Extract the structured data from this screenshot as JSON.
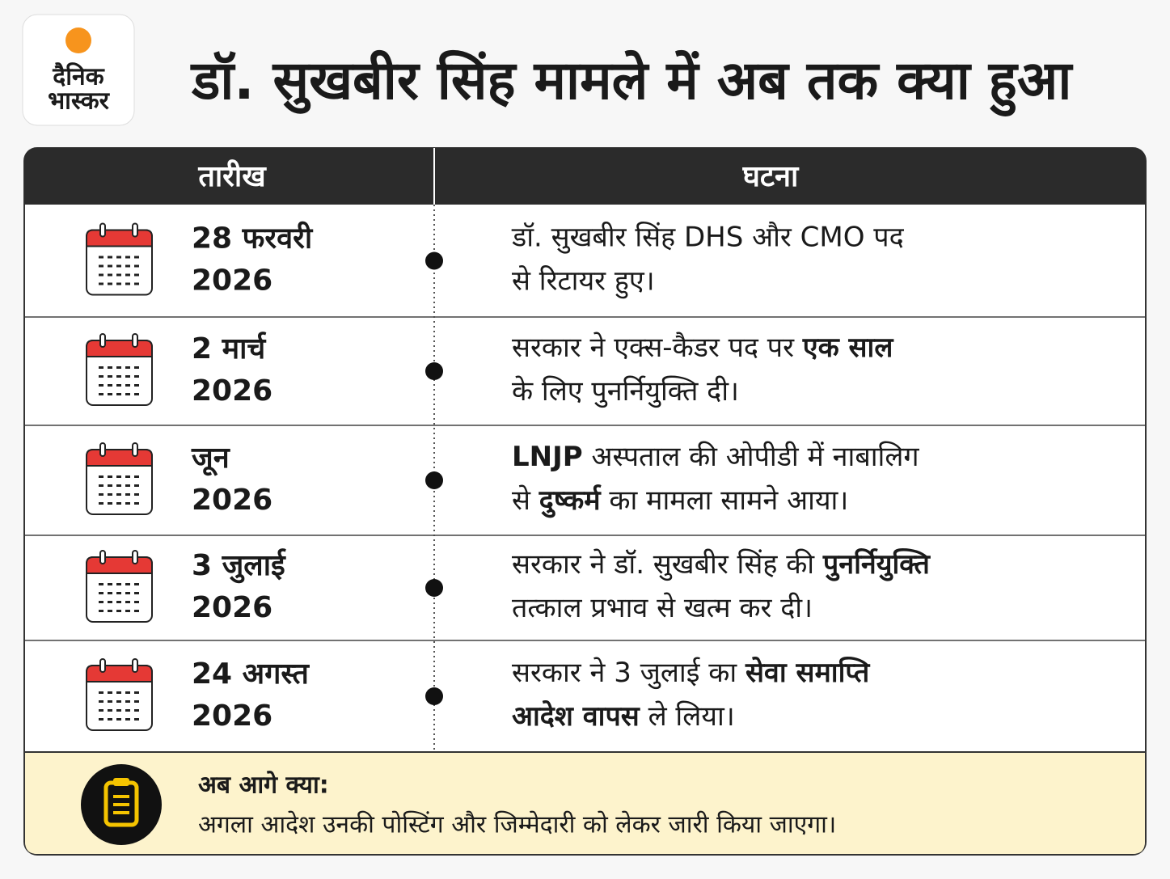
{
  "logo": {
    "line1": "दैनिक",
    "line2": "भास्कर"
  },
  "title": "डॉ. सुखबीर सिंह मामले में अब तक क्या हुआ",
  "table": {
    "headers": [
      "तारीख",
      "घटना"
    ],
    "rows": [
      {
        "date": "28 फरवरी",
        "year": "2026",
        "lines": [
          [
            {
              "text": "डॉ. सुखबीर सिंह DHS और CMO पद",
              "bold": false
            }
          ],
          [
            {
              "text": "से रिटायर हुए।",
              "bold": false
            }
          ]
        ]
      },
      {
        "date": "2 मार्च",
        "year": "2026",
        "lines": [
          [
            {
              "text": "सरकार ने एक्स-कैडर पद पर ",
              "bold": false
            },
            {
              "text": "एक साल",
              "bold": true
            }
          ],
          [
            {
              "text": "के लिए पुनर्नियुक्ति दी।",
              "bold": false
            }
          ]
        ]
      },
      {
        "date": "जून",
        "year": "2026",
        "lines": [
          [
            {
              "text": "LNJP",
              "bold": true
            },
            {
              "text": " अस्पताल की ओपीडी में नाबालिग",
              "bold": false
            }
          ],
          [
            {
              "text": "से ",
              "bold": false
            },
            {
              "text": "दुष्कर्म",
              "bold": true
            },
            {
              "text": " का मामला सामने आया।",
              "bold": false
            }
          ]
        ]
      },
      {
        "date": "3 जुलाई",
        "year": "2026",
        "lines": [
          [
            {
              "text": "सरकार ने डॉ. सुखबीर सिंह की ",
              "bold": false
            },
            {
              "text": "पुनर्नियुक्ति",
              "bold": true
            }
          ],
          [
            {
              "text": "तत्काल प्रभाव से खत्म कर दी।",
              "bold": false
            }
          ]
        ]
      },
      {
        "date": "24 अगस्त",
        "year": "2026",
        "lines": [
          [
            {
              "text": "सरकार ने 3 जुलाई का ",
              "bold": false
            },
            {
              "text": "सेवा समाप्ति",
              "bold": true
            }
          ],
          [
            {
              "text": "आदेश वापस",
              "bold": true
            },
            {
              "text": " ले लिया।",
              "bold": false
            }
          ]
        ]
      }
    ]
  },
  "footer": {
    "heading": "अब आगे क्या:",
    "text": "अगला आदेश उनकी पोस्टिंग और जिम्मेदारी को लेकर जारी किया जाएगा।"
  }
}
